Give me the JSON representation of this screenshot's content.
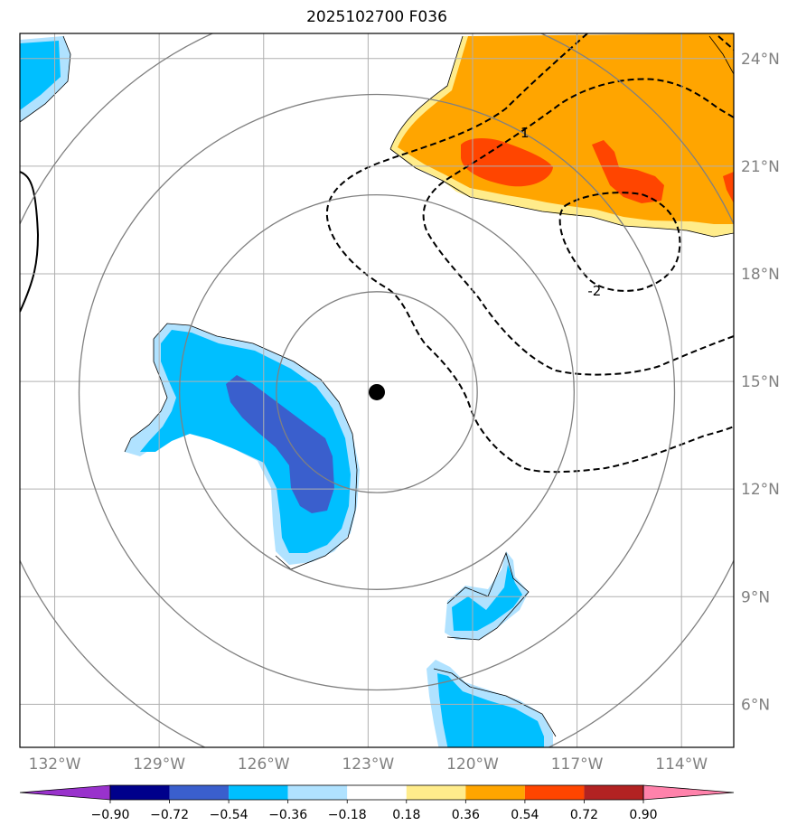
{
  "title": "2025102700 F036",
  "map": {
    "extent": {
      "lon": [
        -133,
        -112.5
      ],
      "lat": [
        4.8,
        24.7
      ]
    },
    "lat_ticks": [
      {
        "value": 24,
        "label": "24°N"
      },
      {
        "value": 21,
        "label": "21°N"
      },
      {
        "value": 18,
        "label": "18°N"
      },
      {
        "value": 15,
        "label": "15°N"
      },
      {
        "value": 12,
        "label": "12°N"
      },
      {
        "value": 9,
        "label": "9°N"
      },
      {
        "value": 6,
        "label": "6°N"
      }
    ],
    "lon_ticks": [
      {
        "value": -132,
        "label": "132°W"
      },
      {
        "value": -129,
        "label": "129°W"
      },
      {
        "value": -126,
        "label": "126°W"
      },
      {
        "value": -123,
        "label": "123°W"
      },
      {
        "value": -120,
        "label": "120°W"
      },
      {
        "value": -117,
        "label": "117°W"
      },
      {
        "value": -114,
        "label": "114°W"
      }
    ],
    "storm_center": {
      "lon": -122.75,
      "lat": 14.7
    },
    "range_rings_deg": [
      2.8,
      5.5,
      8.3,
      11.0
    ],
    "contour_labels": [
      {
        "text": "1",
        "lon": -118.5,
        "lat": 21.8
      },
      {
        "text": "-2",
        "lon": -116.5,
        "lat": 17.4
      }
    ],
    "colors": {
      "grid": "#b0b0b0",
      "ring": "#808080",
      "storm_center": "#000000"
    }
  },
  "colorbar": {
    "levels": [
      "−0.90",
      "−0.72",
      "−0.54",
      "−0.36",
      "−0.18",
      "0.18",
      "0.36",
      "0.54",
      "0.72",
      "0.90"
    ],
    "colors": [
      "#9932cc",
      "#00008b",
      "#3a5fcd",
      "#00bfff",
      "#b0e2ff",
      "#ffffff",
      "#ffec8b",
      "#ffa500",
      "#ff4500",
      "#b22222",
      "#ff82ab"
    ]
  }
}
